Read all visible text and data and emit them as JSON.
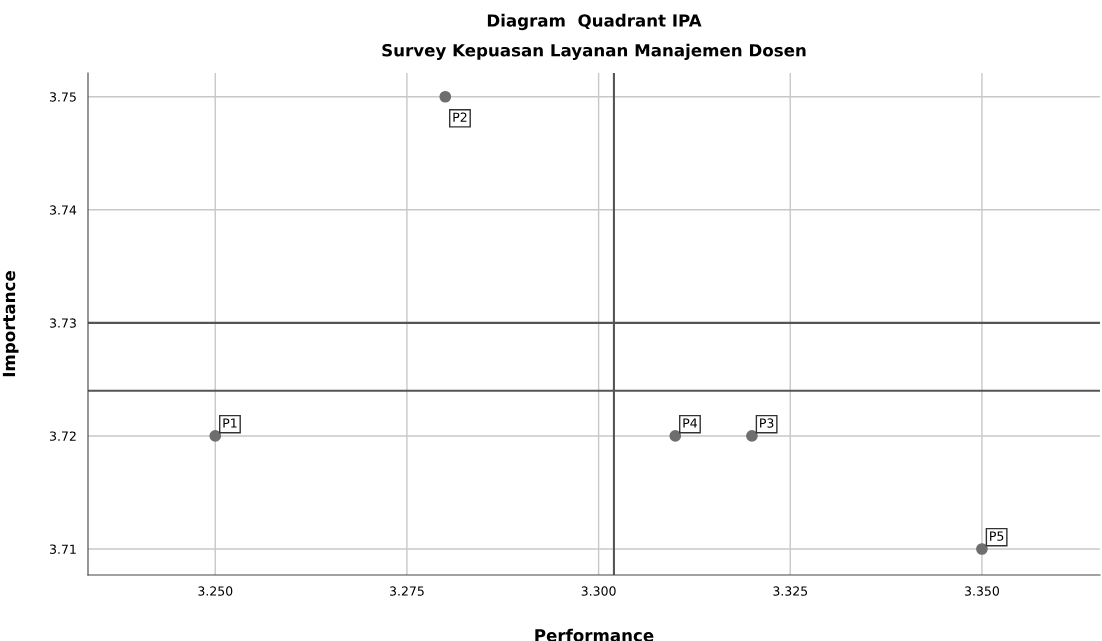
{
  "chart_data": {
    "type": "scatter",
    "title": "Diagram  Quadrant IPA",
    "subtitle": "Survey Kepuasan Layanan Manajemen Dosen",
    "xlabel": "Performance",
    "ylabel": "Importance",
    "x": [
      3.25,
      3.28,
      3.32,
      3.31,
      3.35
    ],
    "series": [
      {
        "color": "#6e6e6e",
        "values": [
          3.72,
          3.75,
          3.72,
          3.72,
          3.71
        ]
      }
    ],
    "annotations": [
      {
        "text": "P1",
        "x": 3.25,
        "y": 3.72
      },
      {
        "text": "P2",
        "x": 3.28,
        "y": 3.75
      },
      {
        "text": "P3",
        "x": 3.32,
        "y": 3.72
      },
      {
        "text": "P4",
        "x": 3.31,
        "y": 3.72
      },
      {
        "text": "P5",
        "x": 3.35,
        "y": 3.71
      }
    ],
    "ref_lines": [
      {
        "axis": "x",
        "value": 3.302,
        "color": "#555555"
      },
      {
        "axis": "y",
        "value": 3.73,
        "color": "#555555"
      },
      {
        "axis": "y",
        "value": 3.724,
        "color": "#555555"
      }
    ],
    "xlim": [
      3.2334,
      3.3654
    ],
    "ylim": [
      3.7077,
      3.7521
    ],
    "xticks": [
      {
        "value": 3.25,
        "label": "3.250"
      },
      {
        "value": 3.275,
        "label": "3.275"
      },
      {
        "value": 3.3,
        "label": "3.300"
      },
      {
        "value": 3.325,
        "label": "3.325"
      },
      {
        "value": 3.35,
        "label": "3.350"
      }
    ],
    "yticks": [
      3.71,
      3.72,
      3.73,
      3.74,
      3.75
    ],
    "grid": true,
    "marker": "circle"
  }
}
